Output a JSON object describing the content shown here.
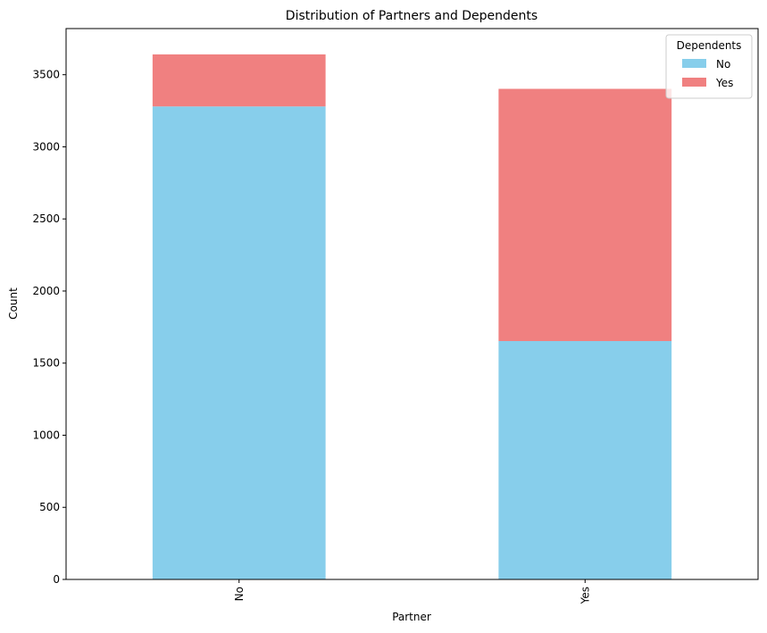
{
  "chart_data": {
    "type": "bar",
    "stacked": true,
    "title": "Distribution of Partners and Dependents",
    "xlabel": "Partner",
    "ylabel": "Count",
    "categories": [
      "No",
      "Yes"
    ],
    "series": [
      {
        "name": "No",
        "values": [
          3280,
          1653
        ],
        "color": "#87ceeb"
      },
      {
        "name": "Yes",
        "values": [
          361,
          1749
        ],
        "color": "#f08080"
      }
    ],
    "ylim": [
      0,
      3820
    ],
    "yticks": [
      0,
      500,
      1000,
      1500,
      2000,
      2500,
      3000,
      3500
    ],
    "legend": {
      "title": "Dependents",
      "placement": "top-right"
    },
    "grid": false
  }
}
